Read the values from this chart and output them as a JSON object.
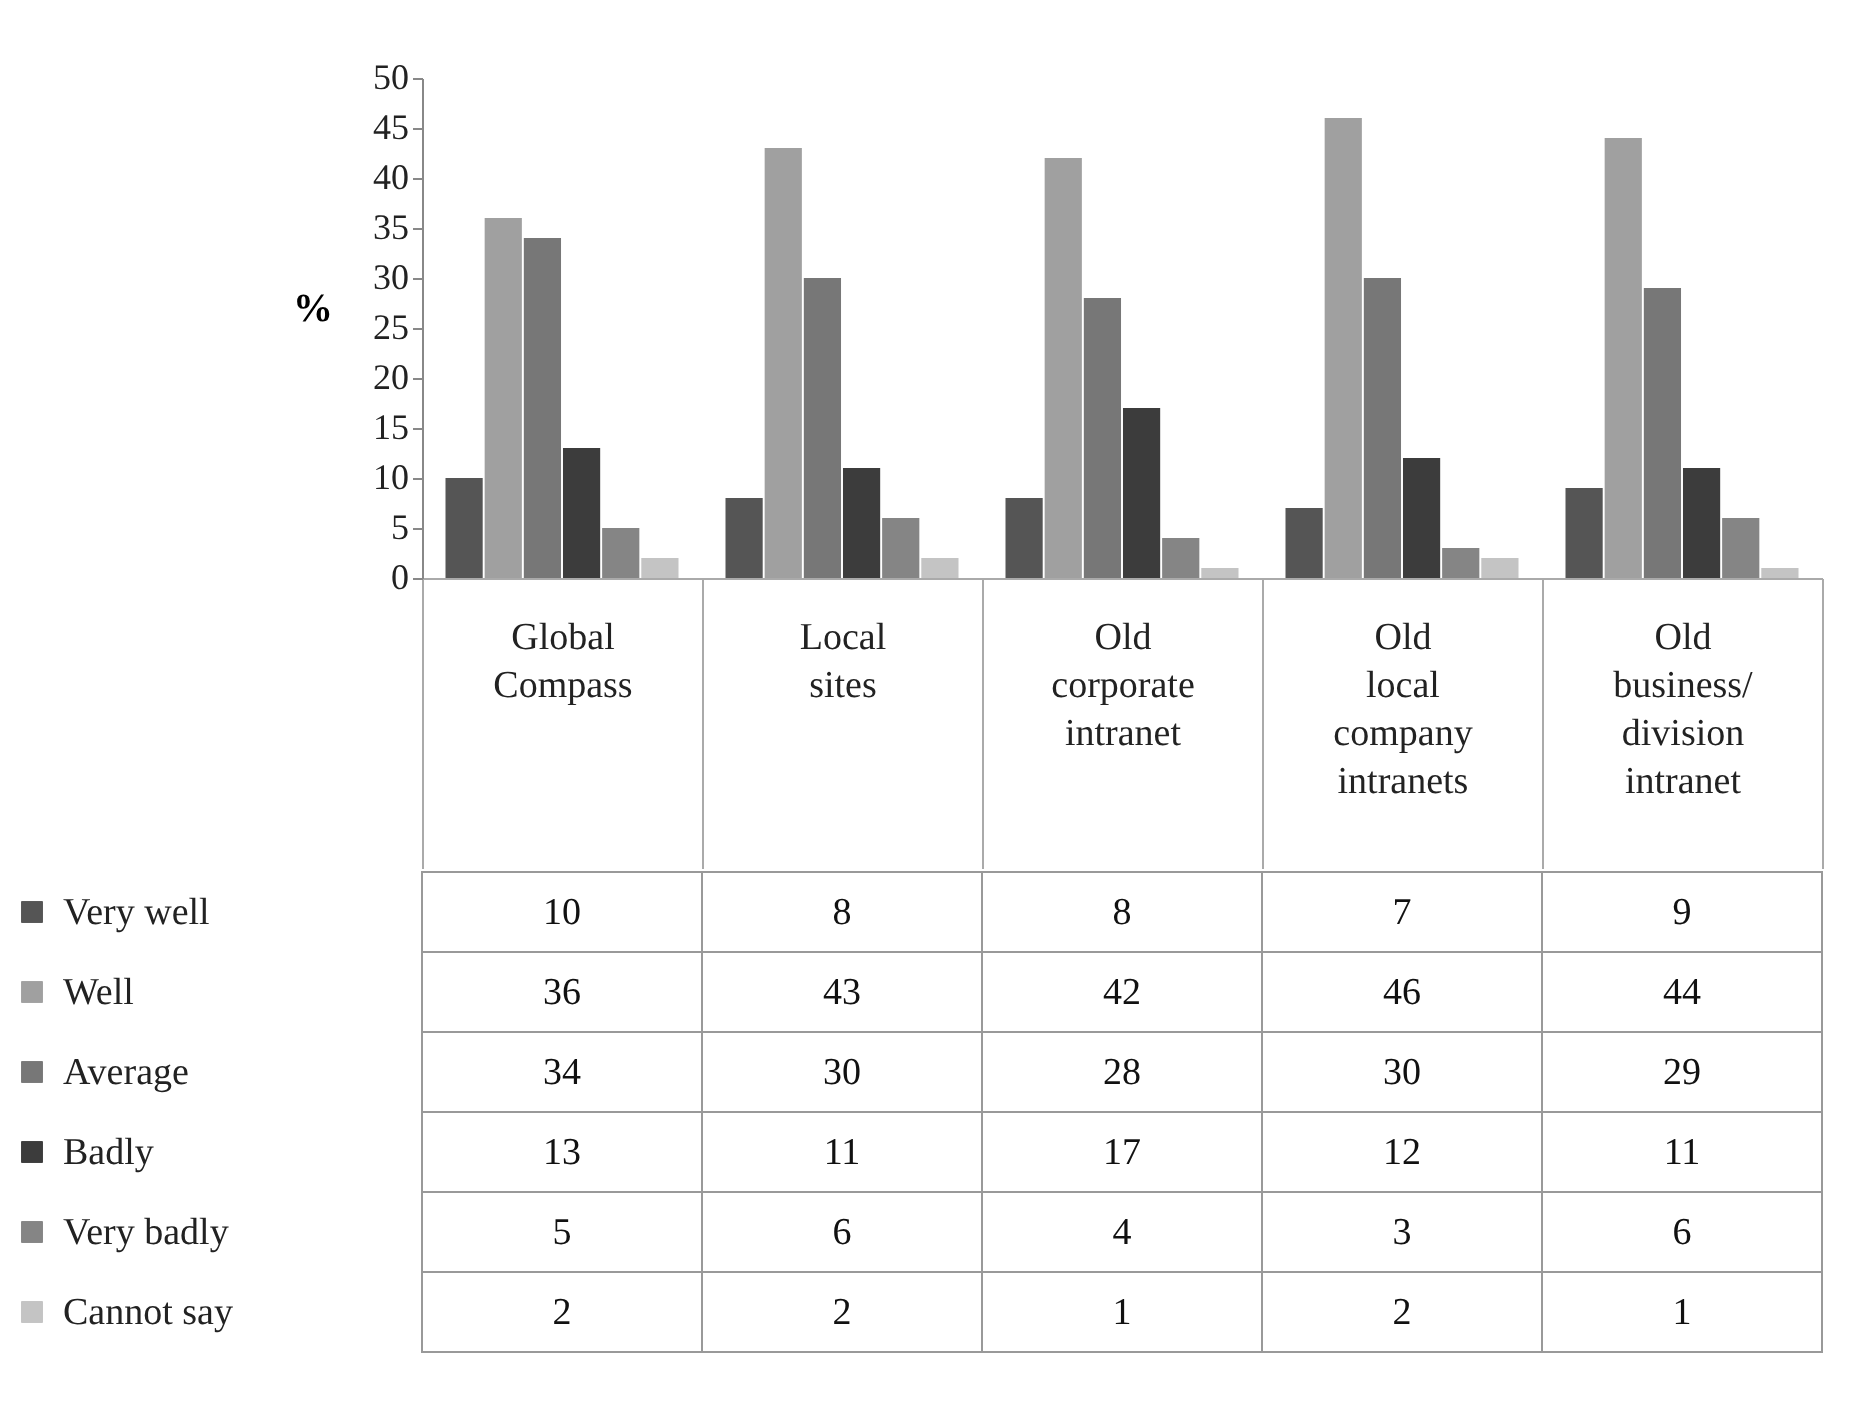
{
  "chart_data": {
    "type": "bar",
    "ylabel": "%",
    "categories": [
      "Global Compass",
      "Local sites",
      "Old corporate intranet",
      "Old local company intranets",
      "Old business/ division intranet"
    ],
    "series": [
      {
        "name": "Very well",
        "color": "#555555",
        "values": [
          10,
          8,
          8,
          7,
          9
        ]
      },
      {
        "name": "Well",
        "color": "#a0a0a0",
        "values": [
          36,
          43,
          42,
          46,
          44
        ]
      },
      {
        "name": "Average",
        "color": "#777777",
        "values": [
          34,
          30,
          28,
          30,
          29
        ]
      },
      {
        "name": "Badly",
        "color": "#3c3c3c",
        "values": [
          13,
          11,
          17,
          12,
          11
        ]
      },
      {
        "name": "Very badly",
        "color": "#858585",
        "values": [
          5,
          6,
          4,
          3,
          6
        ]
      },
      {
        "name": "Cannot say",
        "color": "#c4c4c4",
        "values": [
          2,
          2,
          1,
          2,
          1
        ]
      }
    ],
    "ylim": [
      0,
      50
    ],
    "yticks": [
      0,
      5,
      10,
      15,
      20,
      25,
      30,
      35,
      40,
      45,
      50
    ],
    "grid": false,
    "legend": "left",
    "data_labels": true
  }
}
